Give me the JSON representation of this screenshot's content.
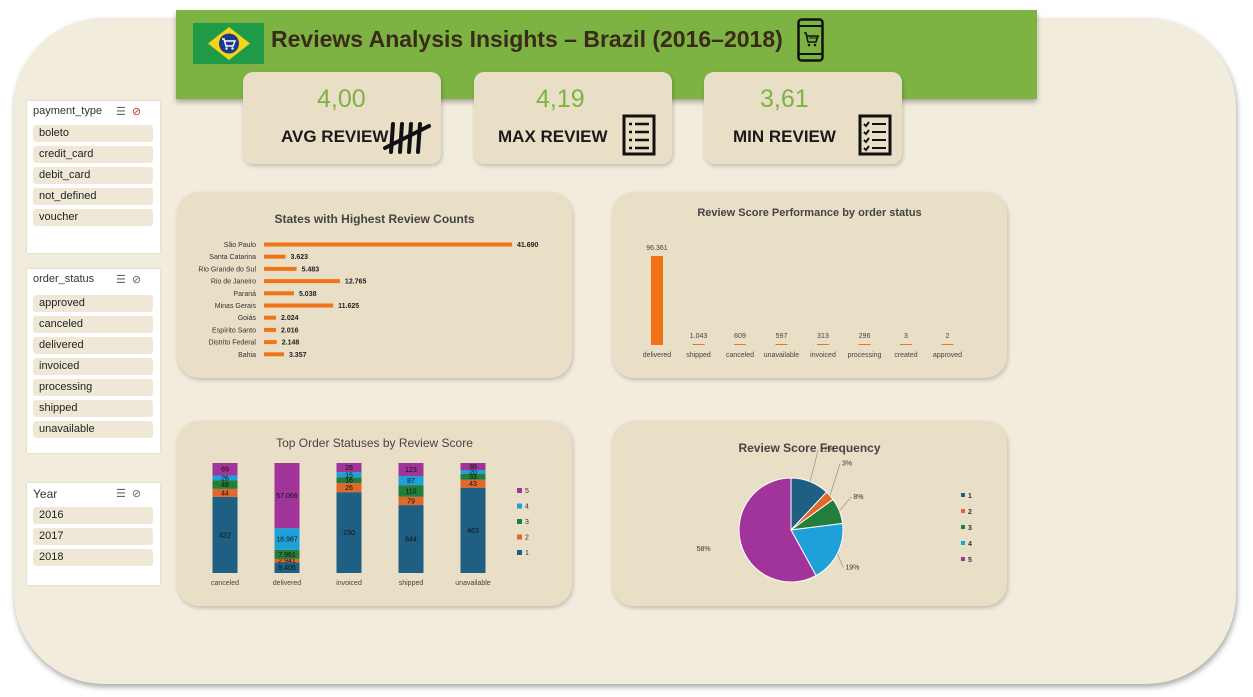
{
  "header": {
    "title": "Reviews Analysis Insights – Brazil (2016–2018)",
    "icons": [
      "brazil-flag-cart-icon",
      "mobile-shopping-icon"
    ],
    "accent_color": "#7db342"
  },
  "kpis": [
    {
      "value": "4,00",
      "label": "AVG REVIEW",
      "icon": "tally-marks-icon"
    },
    {
      "value": "4,19",
      "label": "MAX REVIEW",
      "icon": "list-document-icon"
    },
    {
      "value": "3,61",
      "label": "MIN REVIEW",
      "icon": "checklist-icon"
    }
  ],
  "slicers": {
    "payment_type": {
      "title": "payment_type",
      "items": [
        "boleto",
        "credit_card",
        "debit_card",
        "not_defined",
        "voucher"
      ]
    },
    "order_status": {
      "title": "order_status",
      "items": [
        "approved",
        "canceled",
        "delivered",
        "invoiced",
        "processing",
        "shipped",
        "unavailable"
      ]
    },
    "year": {
      "title": "Year",
      "items": [
        "2016",
        "2017",
        "2018"
      ]
    }
  },
  "chart_data": [
    {
      "type": "bar",
      "orientation": "horizontal",
      "title": "States with Highest Review Counts",
      "categories": [
        "São Paulo",
        "Santa Catarina",
        "Rio Grande do Sul",
        "Rio de Janeiro",
        "Paraná",
        "Minas Gerais",
        "Goiás",
        "Espírito Santo",
        "Distrito Federal",
        "Bahia"
      ],
      "values": [
        41690,
        3623,
        5483,
        12765,
        5038,
        11625,
        2024,
        2016,
        2148,
        3357
      ],
      "labels": [
        "41.690",
        "3.623",
        "5.483",
        "12.765",
        "5.038",
        "11.625",
        "2.024",
        "2.016",
        "2.148",
        "3.357"
      ],
      "color": "#f07318"
    },
    {
      "type": "bar",
      "title": "Review Score Performance by order status",
      "categories": [
        "delivered",
        "shipped",
        "canceled",
        "unavailable",
        "invoiced",
        "processing",
        "created",
        "approved"
      ],
      "values": [
        96361,
        1043,
        609,
        597,
        313,
        296,
        3,
        2
      ],
      "labels": [
        "96.361",
        "1.043",
        "609",
        "597",
        "313",
        "296",
        "3",
        "2"
      ],
      "color": "#f07318"
    },
    {
      "type": "bar",
      "stacked": "percent",
      "title": "Top Order Statuses by Review Score",
      "categories": [
        "canceled",
        "delivered",
        "invoiced",
        "shipped",
        "unavailable"
      ],
      "series": [
        {
          "name": "1",
          "color": "#1f5f84",
          "values": [
            422,
            9406,
            230,
            644,
            463
          ],
          "labels": [
            "422",
            "9.406",
            "230",
            "644",
            "463"
          ]
        },
        {
          "name": "2",
          "color": "#e0682a",
          "values": [
            44,
            2941,
            26,
            79,
            43
          ],
          "labels": [
            "44",
            "2.941",
            "26",
            "79",
            "43"
          ]
        },
        {
          "name": "3",
          "color": "#237d3b",
          "values": [
            48,
            7961,
            16,
            110,
            33
          ],
          "labels": [
            "48",
            "7.961",
            "16",
            "110",
            "33"
          ]
        },
        {
          "name": "4",
          "color": "#1ea0d8",
          "values": [
            26,
            18987,
            15,
            87,
            20
          ],
          "labels": [
            "26",
            "18.987",
            "15",
            "87",
            "20"
          ]
        },
        {
          "name": "5",
          "color": "#a0349a",
          "values": [
            69,
            57066,
            26,
            123,
            38
          ],
          "labels": [
            "69",
            "57.066",
            "26",
            "123",
            "38"
          ]
        }
      ],
      "legend": "right"
    },
    {
      "type": "pie",
      "title": "Review Score Frequency",
      "categories": [
        "1",
        "2",
        "3",
        "4",
        "5"
      ],
      "values": [
        12,
        3,
        8,
        19,
        58
      ],
      "labels": [
        "12%",
        "3%",
        "8%",
        "19%",
        "58%"
      ],
      "colors": [
        "#1f5f84",
        "#e0682a",
        "#237d3b",
        "#1ea0d8",
        "#a0349a"
      ],
      "legend": "right"
    }
  ]
}
